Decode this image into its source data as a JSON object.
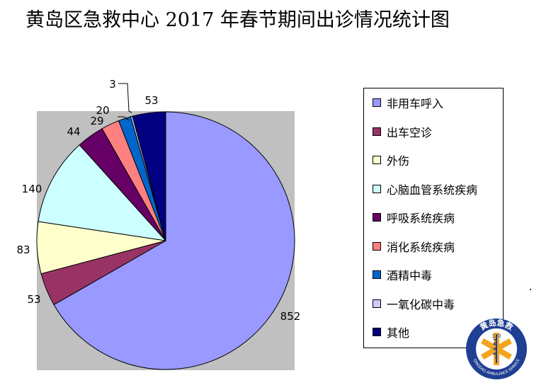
{
  "title": "黄岛区急救中心 2017 年春节期间出诊情况统计图",
  "logo": {
    "top_text": "黄岛急救",
    "number": "120",
    "bottom_text": "QINGDAO AMBULANCE SERVICE",
    "icon": "star-of-life-icon",
    "colors": {
      "ring": "#1f3f93",
      "star": "#f3a51e",
      "inner": "#ffffff"
    }
  },
  "chart_data": {
    "type": "pie",
    "title": "黄岛区急救中心 2017 年春节期间出诊情况统计图",
    "start_angle_deg": 0,
    "direction": "clockwise",
    "legend_position": "right",
    "plot_background": "#c0c0c0",
    "slices": [
      {
        "label": "非用车呼入",
        "value": 852,
        "color": "#9999ff"
      },
      {
        "label": "出车空诊",
        "value": 53,
        "color": "#993366"
      },
      {
        "label": "外伤",
        "value": 83,
        "color": "#ffffcc"
      },
      {
        "label": "心脑血管系统疾病",
        "value": 140,
        "color": "#ccffff"
      },
      {
        "label": "呼吸系统疾病",
        "value": 44,
        "color": "#660066"
      },
      {
        "label": "消化系统疾病",
        "value": 29,
        "color": "#ff8080"
      },
      {
        "label": "酒精中毒",
        "value": 20,
        "color": "#0066cc"
      },
      {
        "label": "一氧化碳中毒",
        "value": 3,
        "color": "#ccccff"
      },
      {
        "label": "其他",
        "value": 53,
        "color": "#000080"
      }
    ]
  }
}
